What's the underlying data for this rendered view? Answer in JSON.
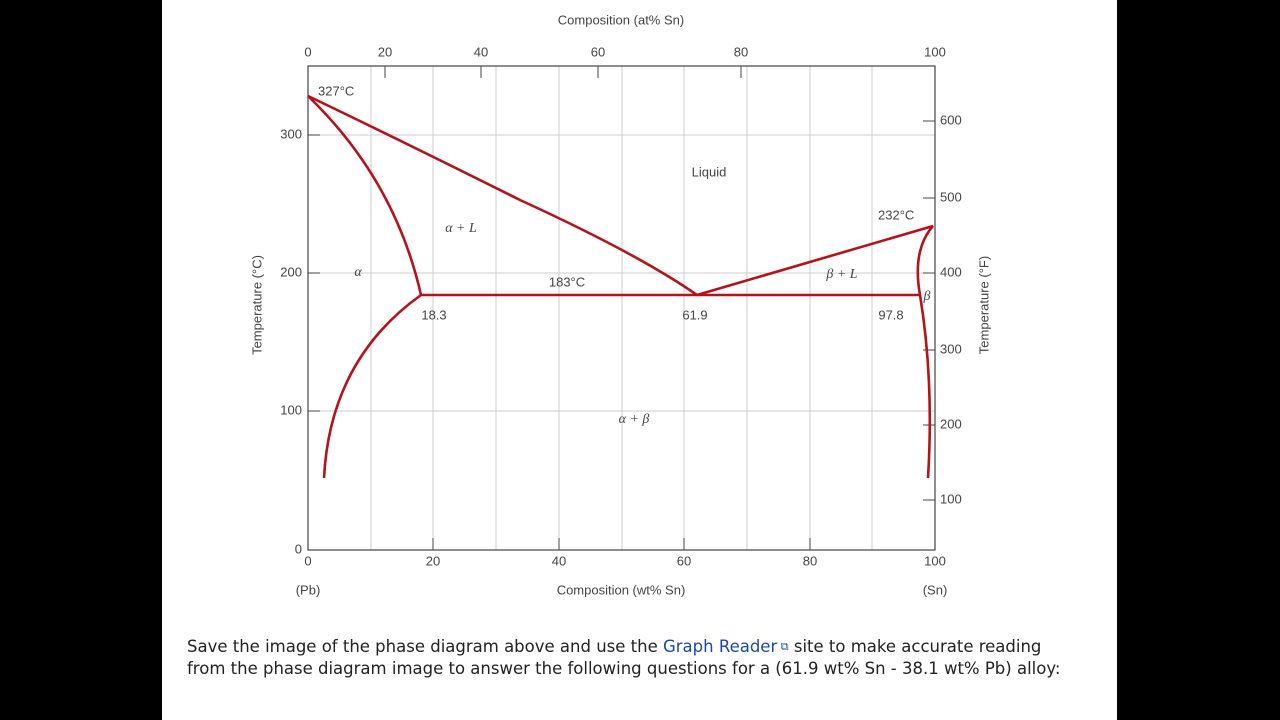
{
  "figure": {
    "top_axis_title": "Composition (at% Sn)",
    "bottom_axis_title": "Composition (wt% Sn)",
    "left_axis_title": "Temperature (°C)",
    "right_axis_title": "Temperature (°F)",
    "left_end_label": "(Pb)",
    "right_end_label": "(Sn)",
    "top_ticks": [
      "0",
      "20",
      "40",
      "60",
      "80",
      "100"
    ],
    "bottom_ticks": [
      "0",
      "20",
      "40",
      "60",
      "80",
      "100"
    ],
    "left_ticks": [
      "0",
      "100",
      "200",
      "300"
    ],
    "right_ticks": [
      "600",
      "500",
      "400",
      "300",
      "200",
      "100"
    ],
    "annotations": {
      "pb_melting": "327°C",
      "sn_melting": "232°C",
      "eutectic_temp": "183°C",
      "alpha_limit": "18.3",
      "eutectic_comp": "61.9",
      "beta_limit": "97.8"
    },
    "regions": {
      "liquid": "Liquid",
      "alpha_liquid": "α + L",
      "alpha": "α",
      "beta_liquid": "β + L",
      "beta": "β",
      "alpha_beta": "α + β"
    }
  },
  "text": {
    "part1": "Save the image of the phase diagram above and use the ",
    "link": "Graph Reader",
    "part2": " site to make accurate reading",
    "part3": "from the phase diagram image to answer the following questions for a (61.9 wt% Sn - 38.1 wt% Pb) alloy:"
  }
}
